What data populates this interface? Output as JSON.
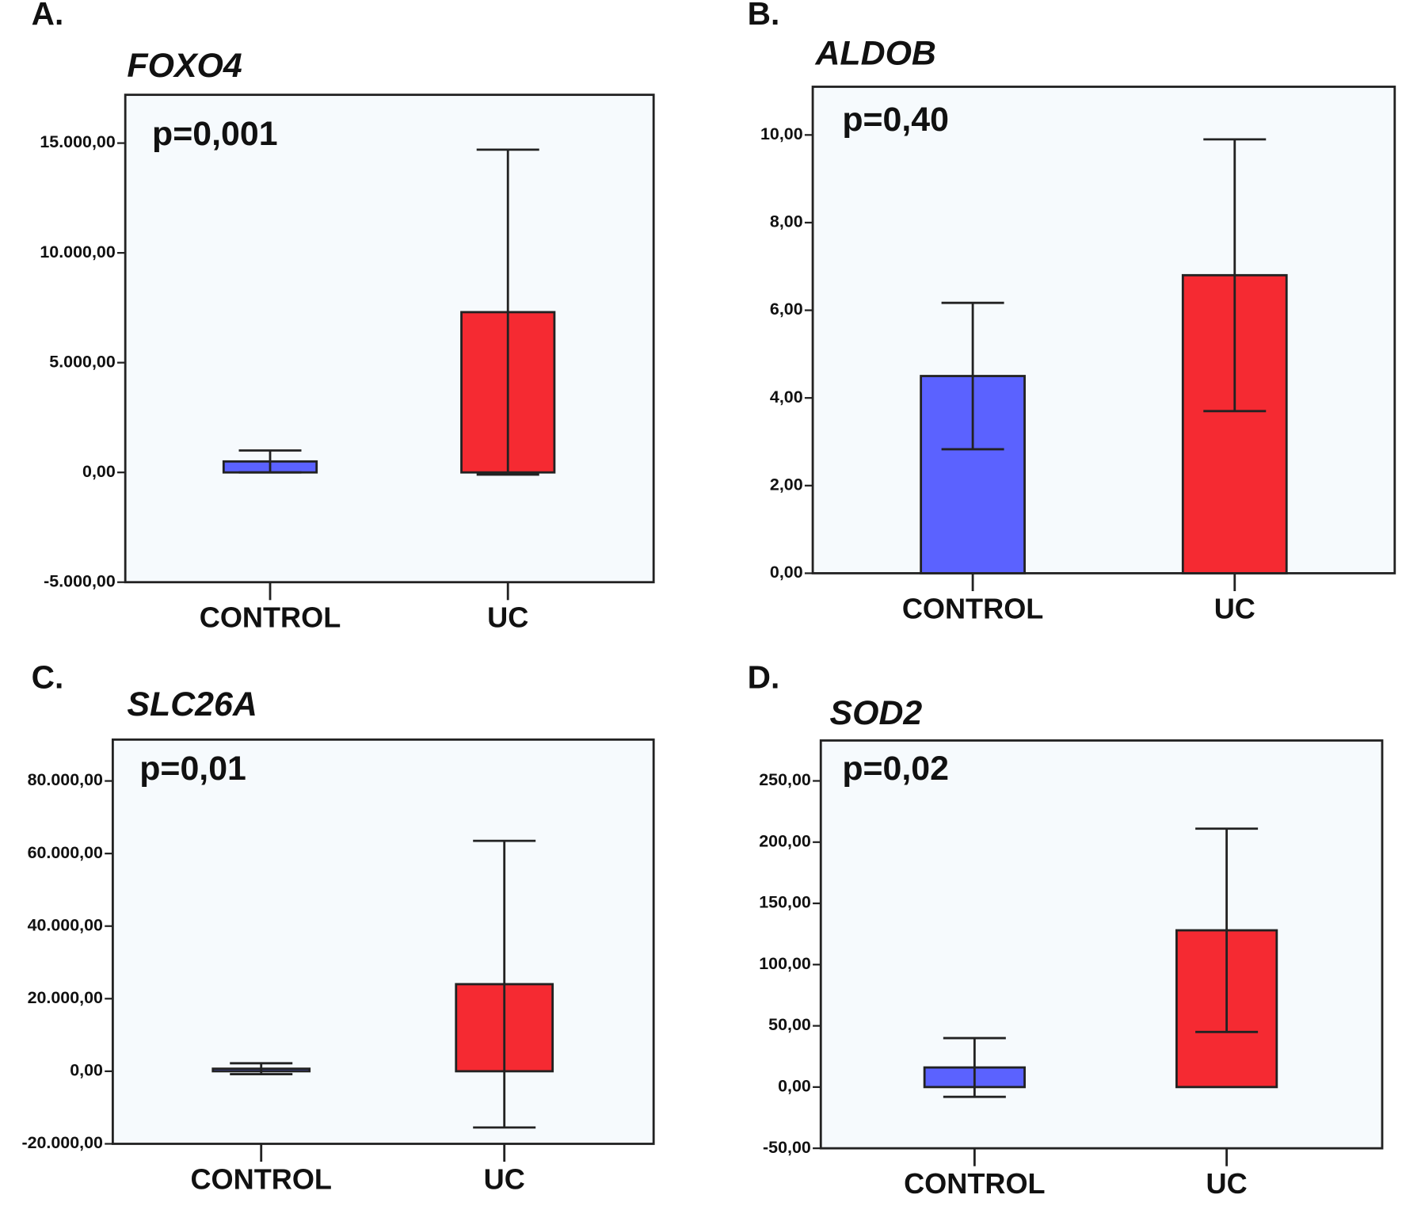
{
  "chart_data": [
    {
      "type": "bar",
      "panel": "A.",
      "title": "FOXO4",
      "annotation": "p=0,001",
      "categories": [
        "CONTROL",
        "UC"
      ],
      "values": [
        500,
        7300
      ],
      "errors": [
        500,
        7400
      ],
      "colors": [
        "#5b62ff",
        "#f52a32"
      ],
      "ylim": [
        -5000,
        17200
      ],
      "yticks": [
        {
          "value": -5000,
          "label": "-5.000,00"
        },
        {
          "value": 0,
          "label": "0,00"
        },
        {
          "value": 5000,
          "label": "5.000,00"
        },
        {
          "value": 10000,
          "label": "10.000,00"
        },
        {
          "value": 15000,
          "label": "15.000,00"
        }
      ]
    },
    {
      "type": "bar",
      "panel": "B.",
      "title": "ALDOB",
      "annotation": "p=0,40",
      "categories": [
        "CONTROL",
        "UC"
      ],
      "values": [
        4.5,
        6.8
      ],
      "errors": [
        1.67,
        3.1
      ],
      "colors": [
        "#5b62ff",
        "#f52a32"
      ],
      "ylim": [
        0,
        11.1
      ],
      "yticks": [
        {
          "value": 0,
          "label": "0,00"
        },
        {
          "value": 2,
          "label": "2,00"
        },
        {
          "value": 4,
          "label": "4,00"
        },
        {
          "value": 6,
          "label": "6,00"
        },
        {
          "value": 8,
          "label": "8,00"
        },
        {
          "value": 10,
          "label": "10,00"
        }
      ]
    },
    {
      "type": "bar",
      "panel": "C.",
      "title": "SLC26A",
      "annotation": "p=0,01",
      "categories": [
        "CONTROL",
        "UC"
      ],
      "values": [
        700,
        24000
      ],
      "errors": [
        1500,
        39500
      ],
      "colors": [
        "#5b62ff",
        "#f52a32"
      ],
      "ylim": [
        -20000,
        91400
      ],
      "yticks": [
        {
          "value": -20000,
          "label": "-20.000,00"
        },
        {
          "value": 0,
          "label": "0,00"
        },
        {
          "value": 20000,
          "label": "20.000,00"
        },
        {
          "value": 40000,
          "label": "40.000,00"
        },
        {
          "value": 60000,
          "label": "60.000,00"
        },
        {
          "value": 80000,
          "label": "80.000,00"
        }
      ]
    },
    {
      "type": "bar",
      "panel": "D.",
      "title": "SOD2",
      "annotation": "p=0,02",
      "categories": [
        "CONTROL",
        "UC"
      ],
      "values": [
        16,
        128
      ],
      "errors": [
        24,
        83
      ],
      "colors": [
        "#5b62ff",
        "#f52a32"
      ],
      "ylim": [
        -50,
        283
      ],
      "yticks": [
        {
          "value": -50,
          "label": "-50,00"
        },
        {
          "value": 0,
          "label": "0,00"
        },
        {
          "value": 50,
          "label": "50,00"
        },
        {
          "value": 100,
          "label": "100,00"
        },
        {
          "value": 150,
          "label": "150,00"
        },
        {
          "value": 200,
          "label": "200,00"
        },
        {
          "value": 250,
          "label": "250,00"
        }
      ]
    }
  ]
}
